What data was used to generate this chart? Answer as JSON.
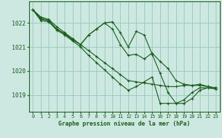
{
  "title": "Graphe pression niveau de la mer (hPa)",
  "bg_color": "#cce8e0",
  "grid_color": "#99ccbb",
  "line_color": "#1a5c1a",
  "marker": "+",
  "label_color": "#1a5c1a",
  "ylabel_ticks": [
    1019,
    1020,
    1021,
    1022
  ],
  "xlim": [
    -0.5,
    23.5
  ],
  "ylim": [
    1018.3,
    1022.9
  ],
  "lines": [
    [
      1022.55,
      1022.25,
      1022.15,
      1021.85,
      1021.6,
      1021.35,
      1021.1,
      1020.85,
      1020.6,
      1020.35,
      1020.1,
      1019.85,
      1019.6,
      1019.55,
      1019.5,
      1019.45,
      1019.4,
      1019.35,
      1019.35,
      1019.4,
      1019.4,
      1019.45,
      1019.35,
      1019.3
    ],
    [
      1022.55,
      1022.2,
      1022.1,
      1021.75,
      1021.55,
      1021.3,
      1021.1,
      1021.5,
      1021.75,
      1022.0,
      1021.75,
      1021.1,
      1020.65,
      1020.7,
      1020.5,
      1020.75,
      1020.4,
      1020.1,
      1019.6,
      1019.45,
      1019.4,
      1019.4,
      1019.35,
      1019.3
    ],
    [
      1022.55,
      1022.15,
      1022.1,
      1021.75,
      1021.55,
      1021.3,
      1021.1,
      1021.5,
      1021.75,
      1022.0,
      1022.05,
      1021.6,
      1021.0,
      1021.65,
      1021.5,
      1020.7,
      1019.9,
      1019.1,
      1018.65,
      1018.8,
      1019.1,
      1019.3,
      1019.3,
      1019.25
    ],
    [
      1022.55,
      1022.1,
      1022.05,
      1021.7,
      1021.5,
      1021.25,
      1021.0,
      1020.65,
      1020.35,
      1020.05,
      1019.75,
      1019.45,
      1019.2,
      1019.35,
      1019.55,
      1019.75,
      1018.65,
      1018.65,
      1018.65,
      1018.65,
      1018.85,
      1019.2,
      1019.3,
      1019.25
    ]
  ]
}
